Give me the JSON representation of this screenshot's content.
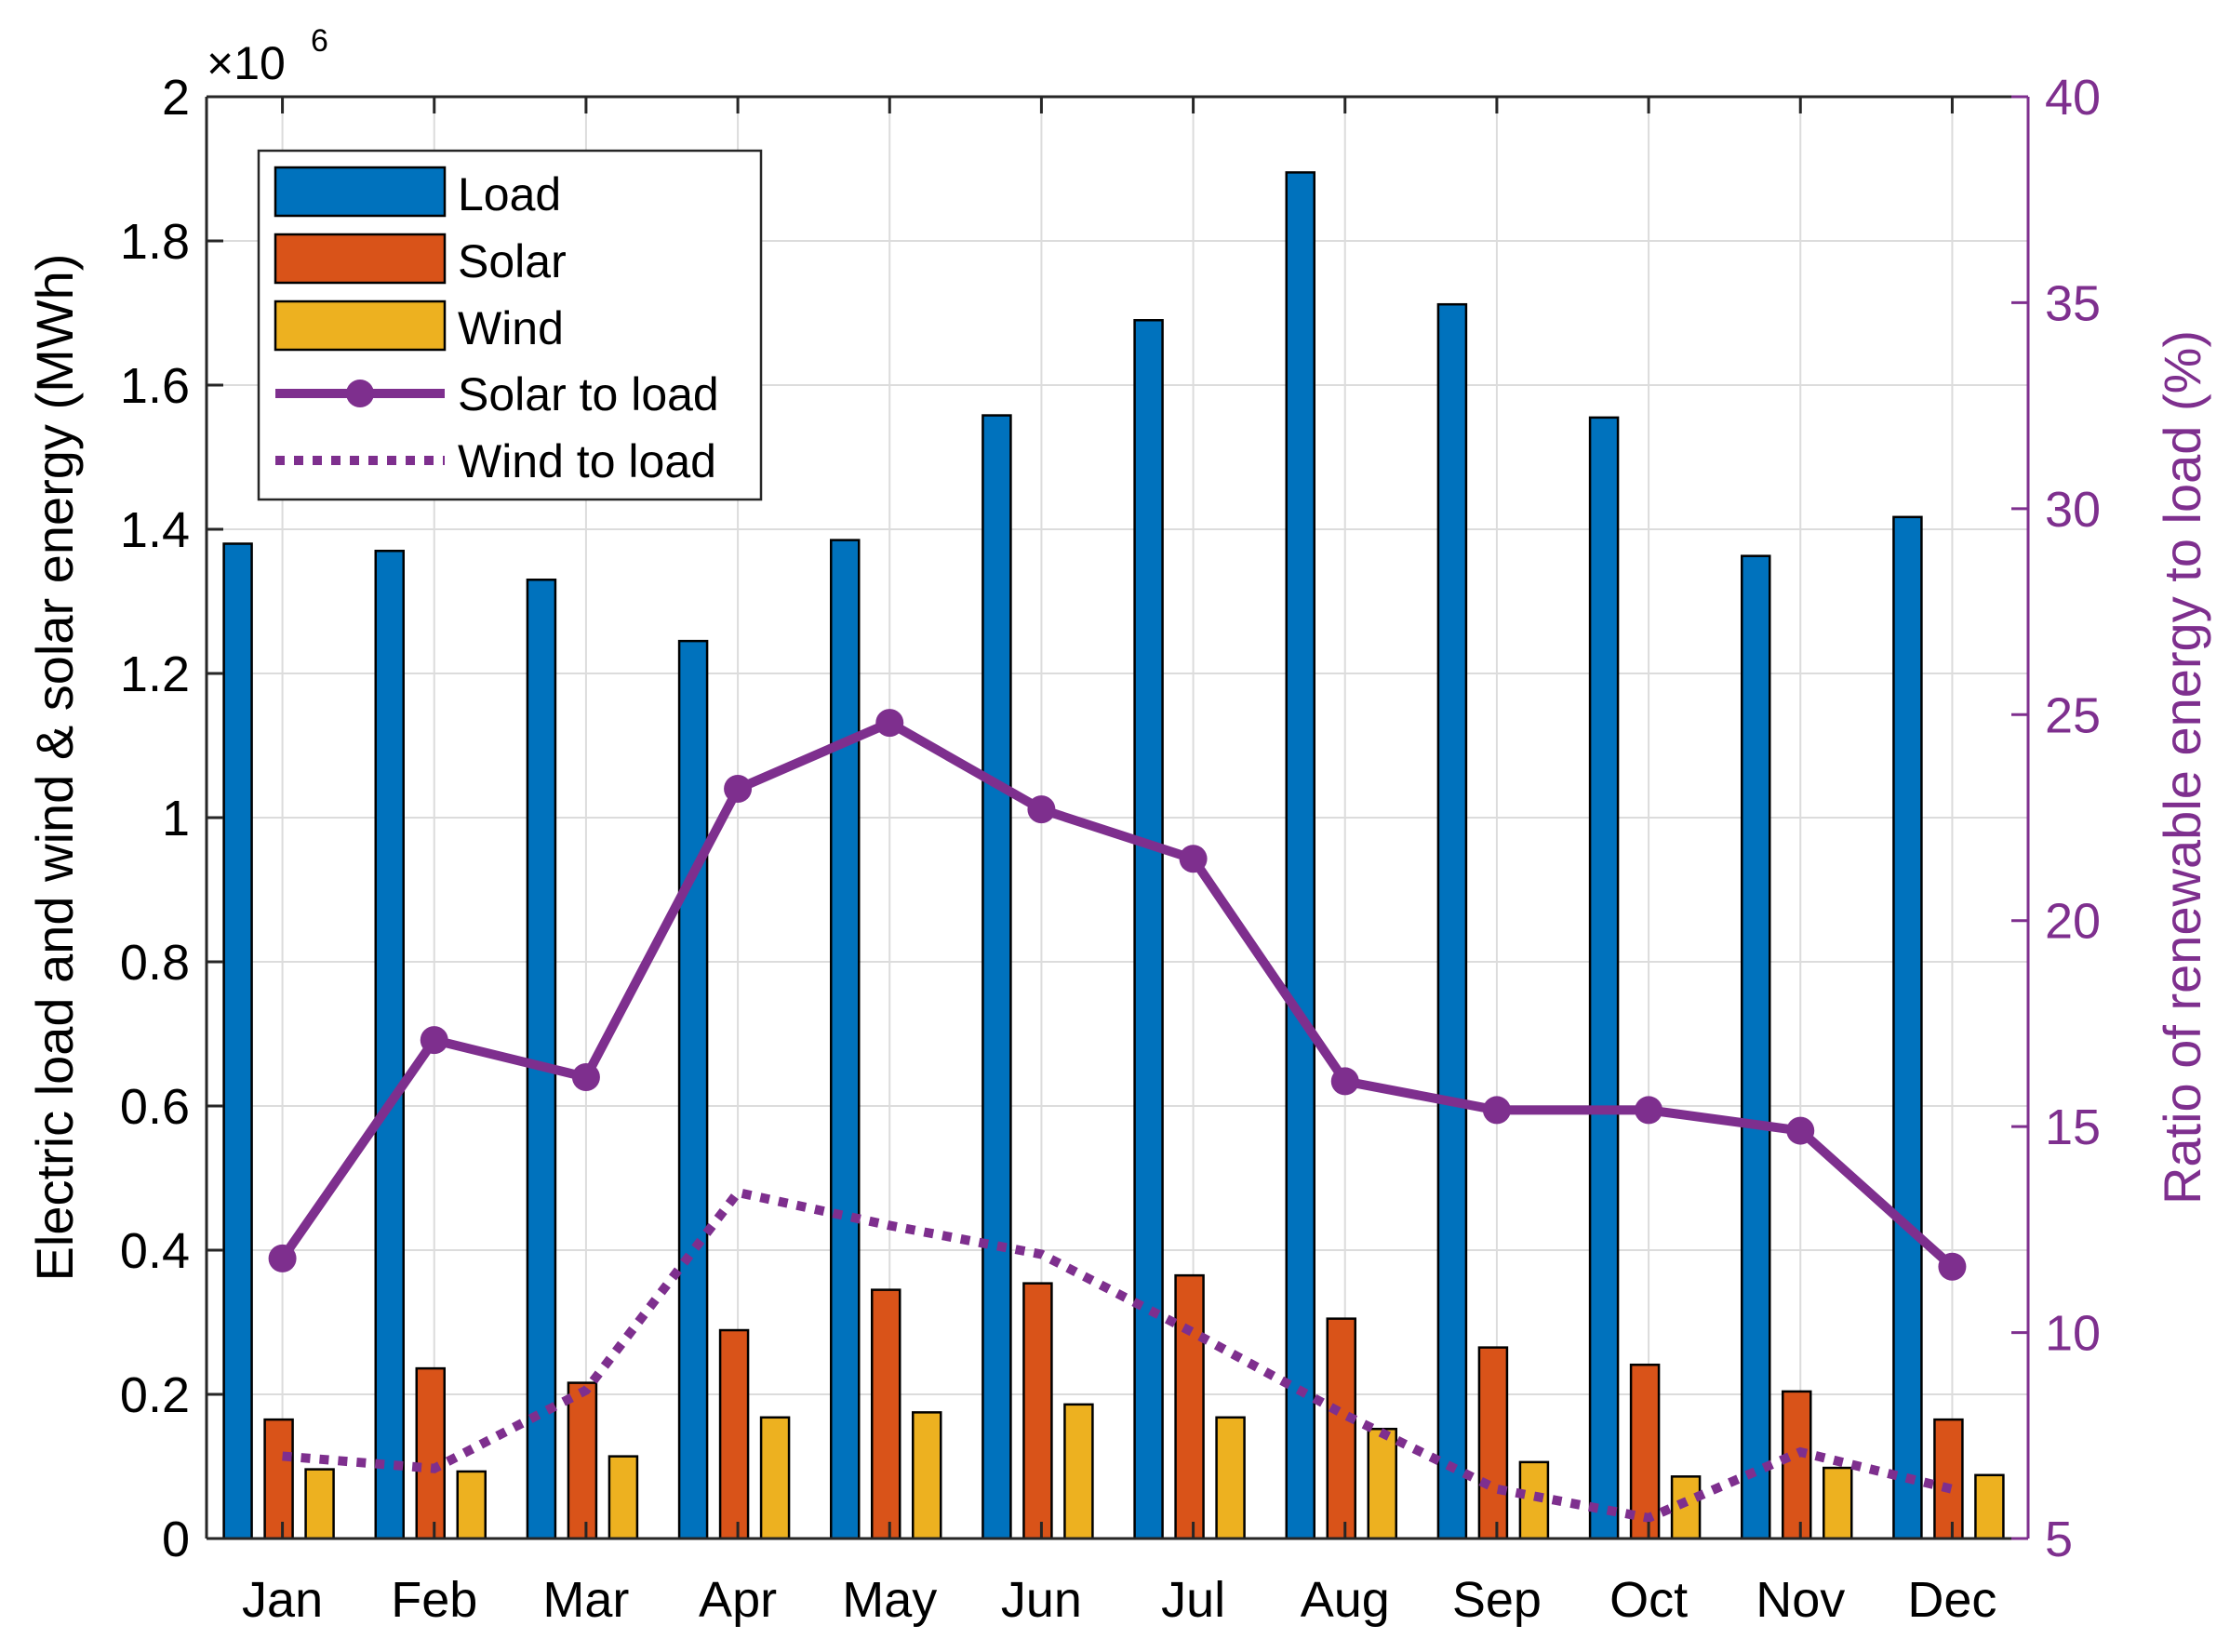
{
  "chart_data": {
    "type": "bar",
    "categories": [
      "Jan",
      "Feb",
      "Mar",
      "Apr",
      "May",
      "Jun",
      "Jul",
      "Aug",
      "Sep",
      "Oct",
      "Nov",
      "Dec"
    ],
    "series": [
      {
        "name": "Load",
        "axis": "left",
        "kind": "bar",
        "color": "#0072BD",
        "values": [
          1380000,
          1370000,
          1330000,
          1245000,
          1385000,
          1558000,
          1690000,
          1895000,
          1712000,
          1555000,
          1363000,
          1417000
        ]
      },
      {
        "name": "Solar",
        "axis": "left",
        "kind": "bar",
        "color": "#D95319",
        "values": [
          165000,
          236000,
          216000,
          289000,
          345000,
          354000,
          365000,
          305000,
          265000,
          241000,
          204000,
          165000
        ]
      },
      {
        "name": "Wind",
        "axis": "left",
        "kind": "bar",
        "color": "#EDB120",
        "values": [
          96000,
          93000,
          114000,
          168000,
          175000,
          186000,
          168000,
          152000,
          106000,
          86000,
          98000,
          88000
        ]
      },
      {
        "name": "Solar to load",
        "axis": "right",
        "kind": "line-marker",
        "color": "#7E2F8E",
        "values": [
          11.8,
          17.1,
          16.2,
          23.2,
          24.8,
          22.7,
          21.5,
          16.1,
          15.4,
          15.4,
          14.9,
          11.6
        ]
      },
      {
        "name": "Wind to load",
        "axis": "right",
        "kind": "line-dotted",
        "color": "#7E2F8E",
        "values": [
          7.0,
          6.7,
          8.6,
          13.4,
          12.6,
          11.9,
          10.0,
          8.0,
          6.2,
          5.5,
          7.1,
          6.2
        ]
      }
    ],
    "xlabel": "",
    "ylabel": "Electric load and wind & solar energy (MWh)",
    "ylabel_right": "Ratio of renewable energy to load (%)",
    "ylim": [
      0,
      2000000
    ],
    "ylim_right": [
      5,
      40
    ],
    "yticks": [
      0,
      200000,
      400000,
      600000,
      800000,
      1000000,
      1200000,
      1400000,
      1600000,
      1800000,
      2000000
    ],
    "ytick_labels": [
      "0",
      "0.2",
      "0.4",
      "0.6",
      "0.8",
      "1",
      "1.2",
      "1.4",
      "1.6",
      "1.8",
      "2"
    ],
    "yticks_right": [
      5,
      10,
      15,
      20,
      25,
      30,
      35,
      40
    ],
    "ytick_labels_right": [
      "5",
      "10",
      "15",
      "20",
      "25",
      "30",
      "35",
      "40"
    ],
    "y_exponent_base": "×10",
    "y_exponent_power": "6",
    "grid": true,
    "legend_position": "top-left",
    "legend_entries": [
      "Load",
      "Solar",
      "Wind",
      "Solar to load",
      "Wind to load"
    ]
  }
}
